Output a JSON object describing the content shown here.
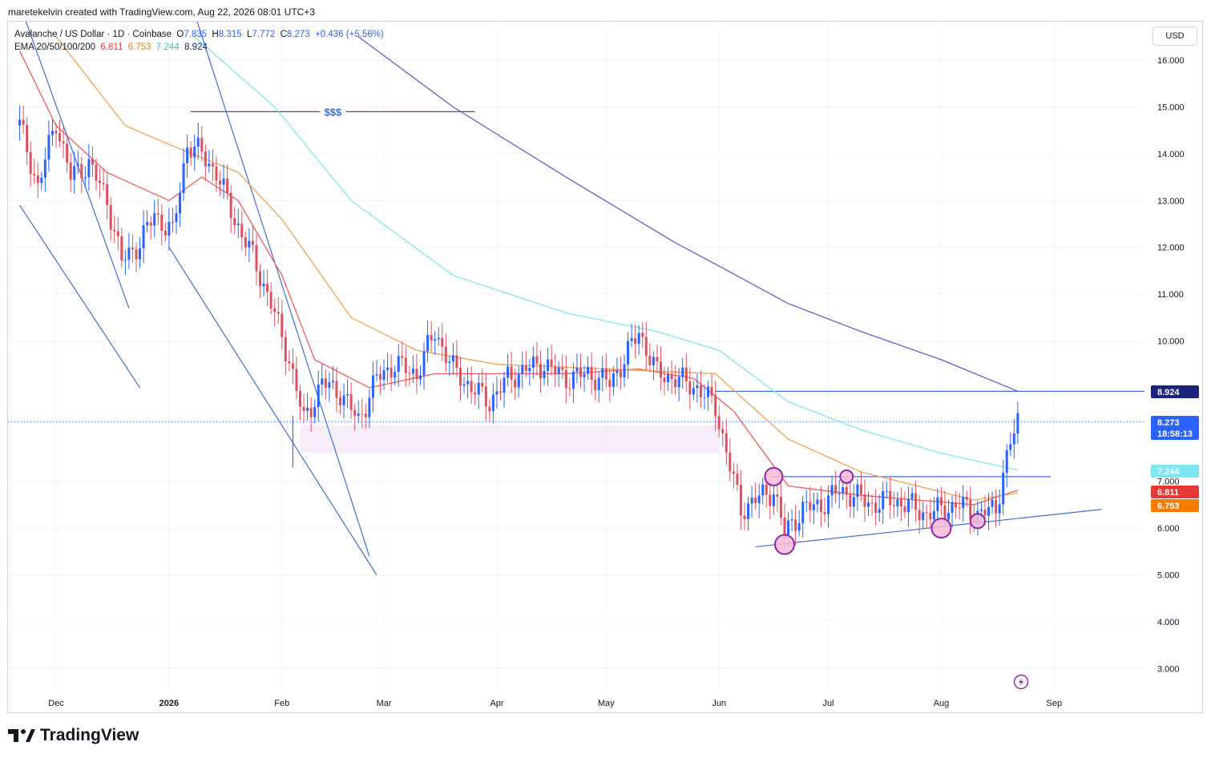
{
  "header": {
    "attribution": "maretekelvin created with TradingView.com, Aug 22, 2026 08:01 UTC+3"
  },
  "legend": {
    "symbol": "Avalanche / US Dollar · 1D · Coinbase",
    "o_label": "O",
    "o": "7.835",
    "h_label": "H",
    "h": "8.315",
    "l_label": "L",
    "l": "7.772",
    "c_label": "C",
    "c": "8.273",
    "change": "+0.436 (+5.56%)",
    "ema_label": "EMA 20/50/100/200",
    "ema20": "6.811",
    "ema50": "6.753",
    "ema100": "7.244",
    "ema200": "8.924"
  },
  "currency": "USD",
  "brand": "TradingView",
  "colors": {
    "up": "#2962ff",
    "down": "#e04f5f",
    "ema20": "#f05a5a",
    "ema50": "#f6a04d",
    "ema100": "#7fe6f0",
    "ema200": "#6a5acd",
    "trend": "#3d6fd6",
    "circle": "#8e24aa",
    "circle_fill": "#f8bbd9",
    "zone": "#f3e5f5",
    "grid": "#f0f3fa",
    "target": "#8e24aa"
  },
  "annotations": {
    "target_label": "$$$"
  },
  "icons": [
    "lightning-icon",
    "tradingview-logo-icon"
  ],
  "chart_data": {
    "type": "candlestick",
    "title": "Avalanche / US Dollar · 1D · Coinbase",
    "y_axis": {
      "scale": "linear",
      "range": [
        2.5,
        16.7
      ],
      "ticks": [
        "3.000",
        "4.000",
        "5.000",
        "6.000",
        "7.000",
        "10.000",
        "11.000",
        "12.000",
        "13.000",
        "14.000",
        "15.000",
        "16.000"
      ]
    },
    "x_axis": {
      "labels": [
        "Dec",
        "2026",
        "Feb",
        "Mar",
        "Apr",
        "May",
        "Jun",
        "Jul",
        "Aug",
        "Sep"
      ]
    },
    "price_labels": [
      {
        "name": "EMA 200",
        "value": "8.924"
      },
      {
        "name": "Last",
        "value": "8.273",
        "countdown": "18:58:13"
      },
      {
        "name": "EMA 100",
        "value": "7.244"
      },
      {
        "name": "EMA 20",
        "value": "6.811"
      },
      {
        "name": "EMA 50",
        "value": "6.753"
      }
    ],
    "horizontal_levels": [
      {
        "name": "liquidity target",
        "value": 14.9,
        "from": "2026-01-07",
        "to": "2026-03-26"
      },
      {
        "name": "resistance",
        "value": 8.924,
        "from": "2026-05-31",
        "to": "2026-08-31"
      },
      {
        "name": "range high",
        "value": 7.1,
        "from": "2026-06-15",
        "to": "2026-08-31"
      }
    ],
    "series": [
      {
        "name": "Close",
        "points": [
          [
            "2025-11-21",
            14.6
          ],
          [
            "2025-11-26",
            13.3
          ],
          [
            "2025-12-01",
            14.7
          ],
          [
            "2025-12-05",
            13.5
          ],
          [
            "2025-12-10",
            13.8
          ],
          [
            "2025-12-15",
            13.0
          ],
          [
            "2025-12-19",
            11.7
          ],
          [
            "2025-12-24",
            12.1
          ],
          [
            "2025-12-28",
            12.7
          ],
          [
            "2026-01-02",
            12.3
          ],
          [
            "2026-01-06",
            14.2
          ],
          [
            "2026-01-10",
            14.0
          ],
          [
            "2026-01-14",
            13.6
          ],
          [
            "2026-01-19",
            12.6
          ],
          [
            "2026-01-24",
            11.8
          ],
          [
            "2026-01-29",
            10.8
          ],
          [
            "2026-02-03",
            9.6
          ],
          [
            "2026-02-07",
            8.3
          ],
          [
            "2026-02-12",
            9.1
          ],
          [
            "2026-02-17",
            8.9
          ],
          [
            "2026-02-22",
            8.3
          ],
          [
            "2026-02-27",
            9.2
          ],
          [
            "2026-03-04",
            9.5
          ],
          [
            "2026-03-10",
            9.3
          ],
          [
            "2026-03-15",
            10.2
          ],
          [
            "2026-03-20",
            9.4
          ],
          [
            "2026-03-25",
            9.0
          ],
          [
            "2026-03-30",
            8.7
          ],
          [
            "2026-04-04",
            9.2
          ],
          [
            "2026-04-09",
            9.4
          ],
          [
            "2026-04-14",
            9.5
          ],
          [
            "2026-04-20",
            9.2
          ],
          [
            "2026-04-26",
            9.3
          ],
          [
            "2026-05-02",
            9.1
          ],
          [
            "2026-05-06",
            9.6
          ],
          [
            "2026-05-10",
            10.2
          ],
          [
            "2026-05-15",
            9.3
          ],
          [
            "2026-05-20",
            9.2
          ],
          [
            "2026-05-26",
            9.0
          ],
          [
            "2026-05-31",
            8.6
          ],
          [
            "2026-06-04",
            7.3
          ],
          [
            "2026-06-07",
            6.4
          ],
          [
            "2026-06-13",
            6.7
          ],
          [
            "2026-06-16",
            6.8
          ],
          [
            "2026-06-19",
            5.9
          ],
          [
            "2026-06-24",
            6.4
          ],
          [
            "2026-06-29",
            6.5
          ],
          [
            "2026-07-04",
            6.8
          ],
          [
            "2026-07-08",
            6.7
          ],
          [
            "2026-07-13",
            6.5
          ],
          [
            "2026-07-18",
            6.6
          ],
          [
            "2026-07-23",
            6.5
          ],
          [
            "2026-07-28",
            6.3
          ],
          [
            "2026-08-01",
            6.4
          ],
          [
            "2026-08-06",
            6.5
          ],
          [
            "2026-08-11",
            6.3
          ],
          [
            "2026-08-16",
            6.4
          ],
          [
            "2026-08-18",
            7.2
          ],
          [
            "2026-08-20",
            7.8
          ],
          [
            "2026-08-22",
            8.273
          ]
        ]
      },
      {
        "name": "EMA 20",
        "points": [
          [
            "2025-11-21",
            16.2
          ],
          [
            "2025-12-01",
            14.6
          ],
          [
            "2025-12-15",
            13.6
          ],
          [
            "2026-01-01",
            13.0
          ],
          [
            "2026-01-10",
            13.5
          ],
          [
            "2026-01-20",
            13.0
          ],
          [
            "2026-02-01",
            11.4
          ],
          [
            "2026-02-10",
            9.6
          ],
          [
            "2026-02-25",
            9.0
          ],
          [
            "2026-03-15",
            9.3
          ],
          [
            "2026-04-01",
            9.3
          ],
          [
            "2026-04-20",
            9.3
          ],
          [
            "2026-05-10",
            9.4
          ],
          [
            "2026-05-25",
            9.2
          ],
          [
            "2026-06-05",
            8.5
          ],
          [
            "2026-06-20",
            6.9
          ],
          [
            "2026-07-10",
            6.7
          ],
          [
            "2026-08-10",
            6.5
          ],
          [
            "2026-08-22",
            6.811
          ]
        ]
      },
      {
        "name": "EMA 50",
        "points": [
          [
            "2025-12-01",
            16.5
          ],
          [
            "2025-12-20",
            14.6
          ],
          [
            "2026-01-01",
            14.2
          ],
          [
            "2026-01-20",
            13.6
          ],
          [
            "2026-02-01",
            12.6
          ],
          [
            "2026-02-20",
            10.5
          ],
          [
            "2026-03-10",
            9.8
          ],
          [
            "2026-04-01",
            9.5
          ],
          [
            "2026-05-01",
            9.4
          ],
          [
            "2026-05-31",
            9.3
          ],
          [
            "2026-06-20",
            7.9
          ],
          [
            "2026-07-10",
            7.2
          ],
          [
            "2026-08-10",
            6.6
          ],
          [
            "2026-08-22",
            6.753
          ]
        ]
      },
      {
        "name": "EMA 100",
        "points": [
          [
            "2026-01-08",
            16.5
          ],
          [
            "2026-01-30",
            15.0
          ],
          [
            "2026-02-20",
            13.0
          ],
          [
            "2026-03-20",
            11.4
          ],
          [
            "2026-04-20",
            10.6
          ],
          [
            "2026-05-15",
            10.2
          ],
          [
            "2026-06-01",
            9.8
          ],
          [
            "2026-06-20",
            8.7
          ],
          [
            "2026-07-10",
            8.1
          ],
          [
            "2026-08-01",
            7.6
          ],
          [
            "2026-08-22",
            7.244
          ]
        ]
      },
      {
        "name": "EMA 200",
        "points": [
          [
            "2026-02-22",
            16.5
          ],
          [
            "2026-03-20",
            15.0
          ],
          [
            "2026-04-20",
            13.5
          ],
          [
            "2026-05-20",
            12.1
          ],
          [
            "2026-06-01",
            11.6
          ],
          [
            "2026-06-20",
            10.8
          ],
          [
            "2026-07-10",
            10.2
          ],
          [
            "2026-08-01",
            9.6
          ],
          [
            "2026-08-22",
            8.924
          ]
        ]
      }
    ]
  }
}
